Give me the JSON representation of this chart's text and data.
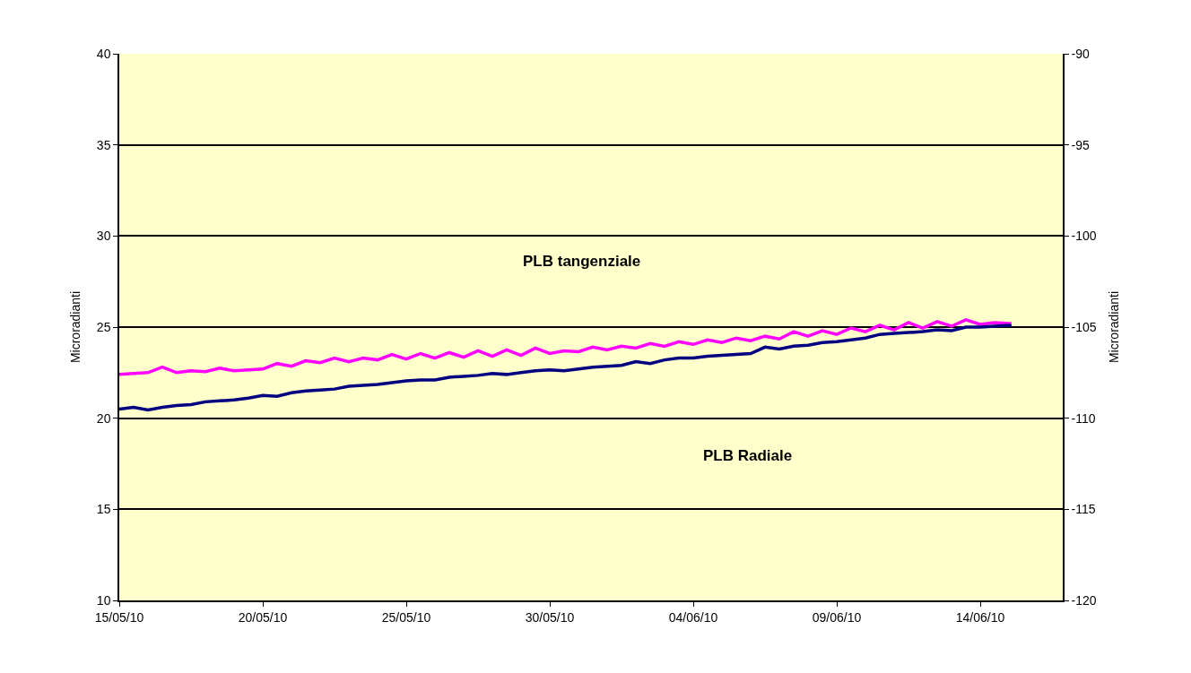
{
  "chart_data": {
    "type": "line",
    "ylabel": "Microradianti",
    "y2label": "Microradianti",
    "xlim": [
      "--05-15",
      "--06-16T21:00"
    ],
    "xticks": [
      {
        "value": "--05-15",
        "label": "15/05/10"
      },
      {
        "value": "--05-20",
        "label": "20/05/10"
      },
      {
        "value": "--05-25",
        "label": "25/05/10"
      },
      {
        "value": "--05-30",
        "label": "30/05/10"
      },
      {
        "value": "--06-04",
        "label": "04/06/10"
      },
      {
        "value": "--06-09",
        "label": "09/06/10"
      },
      {
        "value": "--06-14",
        "label": "14/06/10"
      }
    ],
    "ylim": [
      10,
      40
    ],
    "yticks": [
      10,
      15,
      20,
      25,
      30,
      35,
      40
    ],
    "y2lim": [
      -120,
      -90
    ],
    "y2ticks": [
      -120,
      -115,
      -110,
      -105,
      -100,
      -95,
      -90
    ],
    "grid": "y",
    "marker": "none",
    "line_style": "solid",
    "annotations": [
      "PLB tangenziale",
      "PLB Radiale"
    ],
    "series": [
      {
        "color": "#ff00ff",
        "x": [
          "--05-15T00:00",
          "--05-15T12:00",
          "--05-16T00:00",
          "--05-16T12:00",
          "--05-17T00:00",
          "--05-17T12:00",
          "--05-18T00:00",
          "--05-18T12:00",
          "--05-19T00:00",
          "--05-19T12:00",
          "--05-20T00:00",
          "--05-20T12:00",
          "--05-21T00:00",
          "--05-21T12:00",
          "--05-22T00:00",
          "--05-22T12:00",
          "--05-23T00:00",
          "--05-23T12:00",
          "--05-24T00:00",
          "--05-24T12:00",
          "--05-25T00:00",
          "--05-25T12:00",
          "--05-26T00:00",
          "--05-26T12:00",
          "--05-27T00:00",
          "--05-27T12:00",
          "--05-28T00:00",
          "--05-28T12:00",
          "--05-29T00:00",
          "--05-29T12:00",
          "--05-30T00:00",
          "--05-30T12:00",
          "--05-31T00:00",
          "--05-31T12:00",
          "--06-01T00:00",
          "--06-01T12:00",
          "--06-02T00:00",
          "--06-02T12:00",
          "--06-03T00:00",
          "--06-03T12:00",
          "--06-04T00:00",
          "--06-04T12:00",
          "--06-05T00:00",
          "--06-05T12:00",
          "--06-06T00:00",
          "--06-06T12:00",
          "--06-07T00:00",
          "--06-07T12:00",
          "--06-08T00:00",
          "--06-08T12:00",
          "--06-09T00:00",
          "--06-09T12:00",
          "--06-10T00:00",
          "--06-10T12:00",
          "--06-11T00:00",
          "--06-11T12:00",
          "--06-12T00:00",
          "--06-12T12:00",
          "--06-13T00:00",
          "--06-13T12:00",
          "--06-14T00:00",
          "--06-14T12:00",
          "--06-15T00:00",
          "--06-15T02:00"
        ],
        "values": [
          22.4,
          22.45,
          22.5,
          22.8,
          22.5,
          22.6,
          22.55,
          22.75,
          22.6,
          22.65,
          22.7,
          23.0,
          22.85,
          23.15,
          23.05,
          23.3,
          23.1,
          23.3,
          23.2,
          23.5,
          23.25,
          23.55,
          23.3,
          23.6,
          23.35,
          23.7,
          23.4,
          23.75,
          23.45,
          23.85,
          23.55,
          23.7,
          23.65,
          23.9,
          23.75,
          23.95,
          23.85,
          24.1,
          23.95,
          24.2,
          24.05,
          24.3,
          24.15,
          24.4,
          24.25,
          24.5,
          24.35,
          24.75,
          24.5,
          24.8,
          24.6,
          24.95,
          24.75,
          25.1,
          24.85,
          25.25,
          24.95,
          25.3,
          25.05,
          25.4,
          25.15,
          25.25,
          25.2,
          25.2
        ]
      },
      {
        "color": "#000080",
        "x": [
          "--05-15T00:00",
          "--05-15T12:00",
          "--05-16T00:00",
          "--05-16T12:00",
          "--05-17T00:00",
          "--05-17T12:00",
          "--05-18T00:00",
          "--05-18T12:00",
          "--05-19T00:00",
          "--05-19T12:00",
          "--05-20T00:00",
          "--05-20T12:00",
          "--05-21T00:00",
          "--05-21T12:00",
          "--05-22T00:00",
          "--05-22T12:00",
          "--05-23T00:00",
          "--05-23T12:00",
          "--05-24T00:00",
          "--05-24T12:00",
          "--05-25T00:00",
          "--05-25T12:00",
          "--05-26T00:00",
          "--05-26T12:00",
          "--05-27T00:00",
          "--05-27T12:00",
          "--05-28T00:00",
          "--05-28T12:00",
          "--05-29T00:00",
          "--05-29T12:00",
          "--05-30T00:00",
          "--05-30T12:00",
          "--05-31T00:00",
          "--05-31T12:00",
          "--06-01T00:00",
          "--06-01T12:00",
          "--06-02T00:00",
          "--06-02T12:00",
          "--06-03T00:00",
          "--06-03T12:00",
          "--06-04T00:00",
          "--06-04T12:00",
          "--06-05T00:00",
          "--06-05T12:00",
          "--06-06T00:00",
          "--06-06T12:00",
          "--06-07T00:00",
          "--06-07T12:00",
          "--06-08T00:00",
          "--06-08T12:00",
          "--06-09T00:00",
          "--06-09T12:00",
          "--06-10T00:00",
          "--06-10T12:00",
          "--06-11T00:00",
          "--06-11T12:00",
          "--06-12T00:00",
          "--06-12T12:00",
          "--06-13T00:00",
          "--06-13T12:00",
          "--06-14T00:00",
          "--06-14T12:00",
          "--06-15T00:00",
          "--06-15T02:00"
        ],
        "values": [
          20.5,
          20.6,
          20.45,
          20.6,
          20.7,
          20.75,
          20.9,
          20.95,
          21.0,
          21.1,
          21.25,
          21.2,
          21.4,
          21.5,
          21.55,
          21.6,
          21.75,
          21.8,
          21.85,
          21.95,
          22.05,
          22.1,
          22.1,
          22.25,
          22.3,
          22.35,
          22.45,
          22.4,
          22.5,
          22.6,
          22.65,
          22.6,
          22.7,
          22.8,
          22.85,
          22.9,
          23.1,
          23.0,
          23.2,
          23.3,
          23.3,
          23.4,
          23.45,
          23.5,
          23.55,
          23.9,
          23.8,
          23.95,
          24.0,
          24.15,
          24.2,
          24.3,
          24.4,
          24.6,
          24.65,
          24.7,
          24.75,
          24.85,
          24.8,
          25.0,
          25.0,
          25.05,
          25.1,
          25.05
        ]
      }
    ]
  }
}
